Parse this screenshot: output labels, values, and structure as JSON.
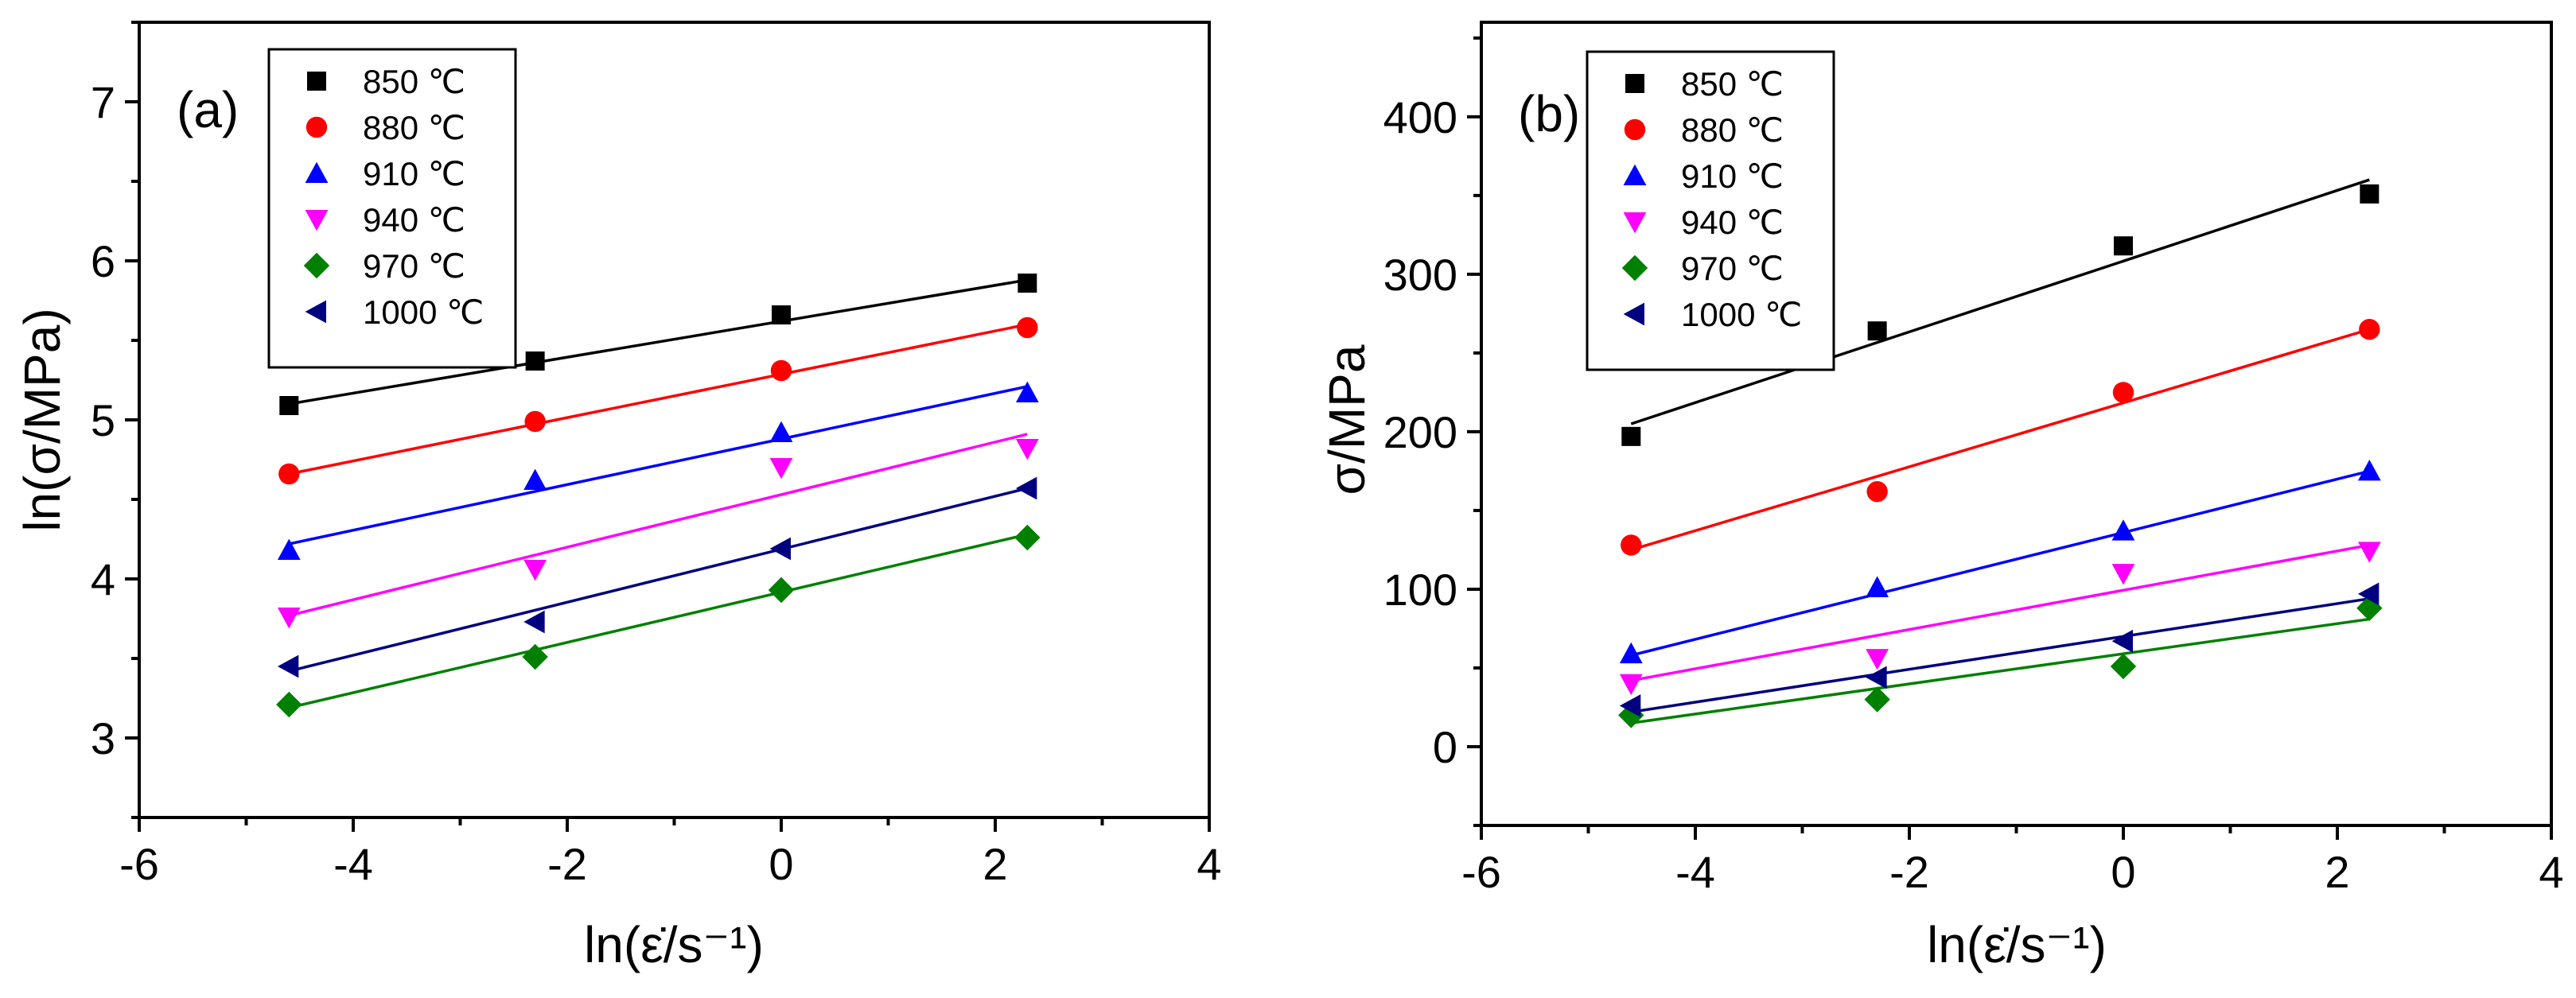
{
  "figure": {
    "legend_order": [
      "850 ℃",
      "880 ℃",
      "910 ℃",
      "940 ℃",
      "970 ℃",
      "1000 ℃"
    ]
  },
  "chart_data": [
    {
      "type": "scatter",
      "panel_label": "(a)",
      "title": "",
      "xlabel": "ln(ε̇/s⁻¹)",
      "ylabel": "ln(σ/MPa)",
      "xlim": [
        -6,
        4
      ],
      "ylim": [
        2.5,
        7.5
      ],
      "xticks": [
        -6,
        -4,
        -2,
        0,
        2,
        4
      ],
      "yticks": [
        3,
        4,
        5,
        6,
        7
      ],
      "x": [
        -4.6,
        -2.3,
        0,
        2.3
      ],
      "legend_position": "top-left",
      "series": [
        {
          "name": "850 ℃",
          "marker": "square",
          "color": "#000000",
          "values": [
            5.09,
            5.37,
            5.66,
            5.86
          ],
          "fit": [
            5.1,
            5.88
          ]
        },
        {
          "name": "880 ℃",
          "marker": "circle",
          "color": "#ff0000",
          "values": [
            4.66,
            4.99,
            5.31,
            5.58
          ],
          "fit": [
            4.66,
            5.6
          ]
        },
        {
          "name": "910 ℃",
          "marker": "triangle-up",
          "color": "#0000ff",
          "values": [
            4.18,
            4.62,
            4.92,
            5.17
          ],
          "fit": [
            4.22,
            5.21
          ]
        },
        {
          "name": "940 ℃",
          "marker": "triangle-down",
          "color": "#ff00ff",
          "values": [
            3.76,
            4.06,
            4.7,
            4.82
          ],
          "fit": [
            3.77,
            4.91
          ]
        },
        {
          "name": "970 ℃",
          "marker": "diamond",
          "color": "#008000",
          "values": [
            3.21,
            3.51,
            3.93,
            4.26
          ],
          "fit": [
            3.19,
            4.28
          ]
        },
        {
          "name": "1000 ℃",
          "marker": "triangle-left",
          "color": "#000080",
          "values": [
            3.45,
            3.73,
            4.19,
            4.57
          ],
          "fit": [
            3.42,
            4.57
          ]
        }
      ]
    },
    {
      "type": "scatter",
      "panel_label": "(b)",
      "title": "",
      "xlabel": "ln(ε̇/s⁻¹)",
      "ylabel": "σ/MPa",
      "xlim": [
        -6,
        4
      ],
      "ylim": [
        -50,
        460
      ],
      "xticks": [
        -6,
        -4,
        -2,
        0,
        2,
        4
      ],
      "yticks": [
        0,
        100,
        200,
        300,
        400
      ],
      "x": [
        -4.6,
        -2.3,
        0,
        2.3
      ],
      "legend_position": "top-left",
      "series": [
        {
          "name": "850 ℃",
          "marker": "square",
          "color": "#000000",
          "values": [
            197,
            264,
            318,
            351
          ],
          "fit": [
            205,
            360
          ]
        },
        {
          "name": "880 ℃",
          "marker": "circle",
          "color": "#ff0000",
          "values": [
            128,
            162,
            225,
            265
          ],
          "fit": [
            125,
            265
          ]
        },
        {
          "name": "910 ℃",
          "marker": "triangle-up",
          "color": "#0000ff",
          "values": [
            59,
            101,
            137,
            175
          ],
          "fit": [
            58,
            175
          ]
        },
        {
          "name": "940 ℃",
          "marker": "triangle-down",
          "color": "#ff00ff",
          "values": [
            40,
            56,
            110,
            124
          ],
          "fit": [
            42,
            128
          ]
        },
        {
          "name": "970 ℃",
          "marker": "diamond",
          "color": "#008000",
          "values": [
            20,
            30,
            51,
            88
          ],
          "fit": [
            15,
            81
          ]
        },
        {
          "name": "1000 ℃",
          "marker": "triangle-left",
          "color": "#000080",
          "values": [
            26,
            44,
            67,
            97
          ],
          "fit": [
            22,
            94
          ]
        }
      ]
    }
  ]
}
